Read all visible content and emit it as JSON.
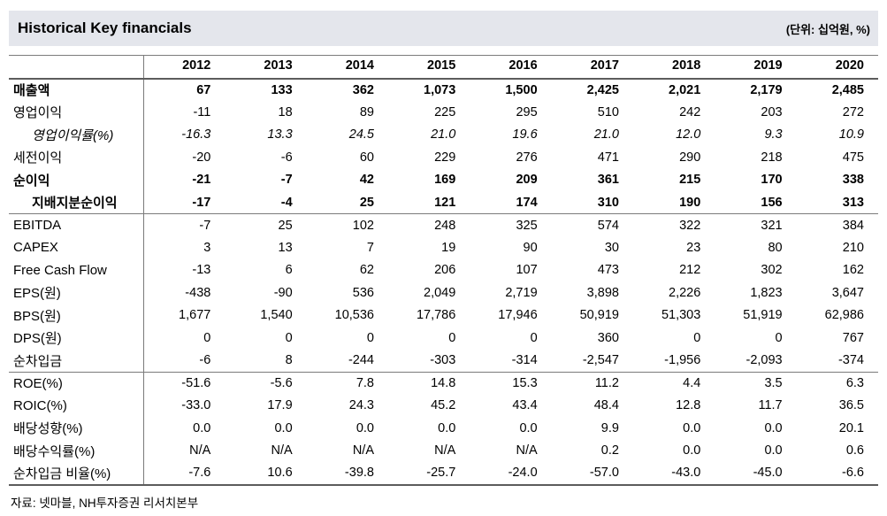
{
  "header": {
    "title": "Historical Key financials",
    "unit_label": "(단위: 십억원, %)"
  },
  "table": {
    "years": [
      "2012",
      "2013",
      "2014",
      "2015",
      "2016",
      "2017",
      "2018",
      "2019",
      "2020"
    ],
    "rows": [
      {
        "label": "매출액",
        "bold": true,
        "italic": false,
        "indent": false,
        "section_end": false,
        "values": [
          "67",
          "133",
          "362",
          "1,073",
          "1,500",
          "2,425",
          "2,021",
          "2,179",
          "2,485"
        ]
      },
      {
        "label": "영업이익",
        "bold": false,
        "italic": false,
        "indent": false,
        "section_end": false,
        "values": [
          "-11",
          "18",
          "89",
          "225",
          "295",
          "510",
          "242",
          "203",
          "272"
        ]
      },
      {
        "label": "영업이익률(%)",
        "bold": false,
        "italic": true,
        "indent": true,
        "section_end": false,
        "values": [
          "-16.3",
          "13.3",
          "24.5",
          "21.0",
          "19.6",
          "21.0",
          "12.0",
          "9.3",
          "10.9"
        ]
      },
      {
        "label": "세전이익",
        "bold": false,
        "italic": false,
        "indent": false,
        "section_end": false,
        "values": [
          "-20",
          "-6",
          "60",
          "229",
          "276",
          "471",
          "290",
          "218",
          "475"
        ]
      },
      {
        "label": "순이익",
        "bold": true,
        "italic": false,
        "indent": false,
        "section_end": false,
        "values": [
          "-21",
          "-7",
          "42",
          "169",
          "209",
          "361",
          "215",
          "170",
          "338"
        ]
      },
      {
        "label": "지배지분순이익",
        "bold": true,
        "italic": false,
        "indent": true,
        "section_end": true,
        "values": [
          "-17",
          "-4",
          "25",
          "121",
          "174",
          "310",
          "190",
          "156",
          "313"
        ]
      },
      {
        "label": "EBITDA",
        "bold": false,
        "italic": false,
        "indent": false,
        "section_end": false,
        "values": [
          "-7",
          "25",
          "102",
          "248",
          "325",
          "574",
          "322",
          "321",
          "384"
        ]
      },
      {
        "label": "CAPEX",
        "bold": false,
        "italic": false,
        "indent": false,
        "section_end": false,
        "values": [
          "3",
          "13",
          "7",
          "19",
          "90",
          "30",
          "23",
          "80",
          "210"
        ]
      },
      {
        "label": "Free Cash Flow",
        "bold": false,
        "italic": false,
        "indent": false,
        "section_end": false,
        "values": [
          "-13",
          "6",
          "62",
          "206",
          "107",
          "473",
          "212",
          "302",
          "162"
        ]
      },
      {
        "label": "EPS(원)",
        "bold": false,
        "italic": false,
        "indent": false,
        "section_end": false,
        "values": [
          "-438",
          "-90",
          "536",
          "2,049",
          "2,719",
          "3,898",
          "2,226",
          "1,823",
          "3,647"
        ]
      },
      {
        "label": "BPS(원)",
        "bold": false,
        "italic": false,
        "indent": false,
        "section_end": false,
        "values": [
          "1,677",
          "1,540",
          "10,536",
          "17,786",
          "17,946",
          "50,919",
          "51,303",
          "51,919",
          "62,986"
        ]
      },
      {
        "label": "DPS(원)",
        "bold": false,
        "italic": false,
        "indent": false,
        "section_end": false,
        "values": [
          "0",
          "0",
          "0",
          "0",
          "0",
          "360",
          "0",
          "0",
          "767"
        ]
      },
      {
        "label": "순차입금",
        "bold": false,
        "italic": false,
        "indent": false,
        "section_end": true,
        "values": [
          "-6",
          "8",
          "-244",
          "-303",
          "-314",
          "-2,547",
          "-1,956",
          "-2,093",
          "-374"
        ]
      },
      {
        "label": "ROE(%)",
        "bold": false,
        "italic": false,
        "indent": false,
        "section_end": false,
        "values": [
          "-51.6",
          "-5.6",
          "7.8",
          "14.8",
          "15.3",
          "11.2",
          "4.4",
          "3.5",
          "6.3"
        ]
      },
      {
        "label": "ROIC(%)",
        "bold": false,
        "italic": false,
        "indent": false,
        "section_end": false,
        "values": [
          "-33.0",
          "17.9",
          "24.3",
          "45.2",
          "43.4",
          "48.4",
          "12.8",
          "11.7",
          "36.5"
        ]
      },
      {
        "label": "배당성향(%)",
        "bold": false,
        "italic": false,
        "indent": false,
        "section_end": false,
        "values": [
          "0.0",
          "0.0",
          "0.0",
          "0.0",
          "0.0",
          "9.9",
          "0.0",
          "0.0",
          "20.1"
        ]
      },
      {
        "label": "배당수익률(%)",
        "bold": false,
        "italic": false,
        "indent": false,
        "section_end": false,
        "values": [
          "N/A",
          "N/A",
          "N/A",
          "N/A",
          "N/A",
          "0.2",
          "0.0",
          "0.0",
          "0.6"
        ]
      },
      {
        "label": "순차입금 비율(%)",
        "bold": false,
        "italic": false,
        "indent": false,
        "section_end": false,
        "values": [
          "-7.6",
          "10.6",
          "-39.8",
          "-25.7",
          "-24.0",
          "-57.0",
          "-43.0",
          "-45.0",
          "-6.6"
        ]
      }
    ]
  },
  "footer": {
    "source": "자료: 넷마블, NH투자증권 리서치본부"
  },
  "colors": {
    "title_band_bg": "#e4e6ec",
    "border_gray": "#7b7b7b",
    "heavy_border_gray": "#5c5c5c",
    "text": "#000000"
  }
}
